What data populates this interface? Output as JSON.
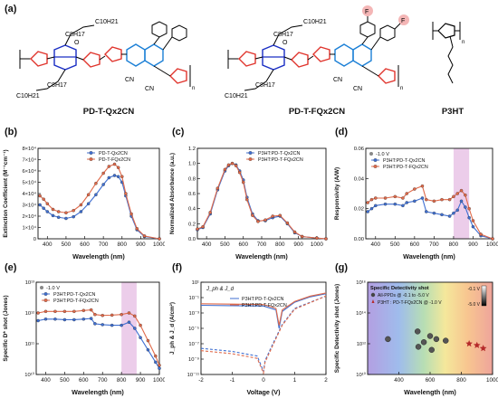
{
  "panels": {
    "a": "(a)",
    "b": "(b)",
    "c": "(c)",
    "d": "(d)",
    "e": "(e)",
    "f": "(f)",
    "g": "(g)"
  },
  "structures": {
    "poly1_name": "PD-T-Qx2CN",
    "poly2_name": "PD-T-FQx2CN",
    "poly3_name": "P3HT",
    "sidechain_top": "C8H17",
    "sidechain_top2": "C10H21",
    "sidechain_bot": "C10H21",
    "sidechain_bot2": "C8H17",
    "cn": "CN",
    "n": "n",
    "o": "O",
    "f": "F",
    "colors": {
      "thiophene": "#e0342c",
      "dpp": "#1a2ec4",
      "quinox": "#1b7fd6",
      "fluoro_hl": "#f4b6b6"
    }
  },
  "chart_data": [
    {
      "id": "b",
      "type": "line",
      "xlabel": "Wavelength (nm)",
      "ylabel": "Extinction Coefficient (M⁻¹cm⁻¹)",
      "xlim": [
        350,
        1000
      ],
      "ylim": [
        0,
        80000
      ],
      "xticks": [
        "400",
        "500",
        "600",
        "700",
        "800",
        "900",
        "1000"
      ],
      "yticks": [
        "0",
        "1×10⁴",
        "2×10⁴",
        "3×10⁴",
        "4×10⁴",
        "5×10⁴",
        "6×10⁴",
        "7×10⁴",
        "8×10⁴"
      ],
      "legend": [
        "PD-T-Qx2CN",
        "PD-T-FQx2CN"
      ],
      "series": [
        {
          "name": "PD-T-Qx2CN",
          "color": "#3f6fd1",
          "x": [
            360,
            380,
            400,
            430,
            460,
            500,
            540,
            580,
            620,
            660,
            700,
            730,
            760,
            780,
            800,
            820,
            850,
            880,
            920,
            1000
          ],
          "y": [
            30000,
            27000,
            24000,
            20500,
            19000,
            18000,
            19500,
            24000,
            31000,
            39000,
            48000,
            54000,
            56000,
            55000,
            50000,
            38000,
            20000,
            8000,
            2000,
            0
          ]
        },
        {
          "name": "PD-T-FQx2CN",
          "color": "#e06a4a",
          "x": [
            360,
            380,
            400,
            430,
            460,
            500,
            540,
            580,
            620,
            660,
            700,
            730,
            760,
            780,
            800,
            820,
            850,
            880,
            920,
            1000
          ],
          "y": [
            38000,
            35000,
            31000,
            26000,
            24000,
            23000,
            25000,
            30000,
            39000,
            49000,
            58000,
            64000,
            66000,
            63000,
            55000,
            40000,
            22000,
            9000,
            2500,
            0
          ]
        }
      ]
    },
    {
      "id": "c",
      "type": "line",
      "xlabel": "Wavelength (nm)",
      "ylabel": "Normalized Absorbance (a.u.)",
      "xlim": [
        350,
        1050
      ],
      "ylim": [
        0,
        1.2
      ],
      "xticks": [
        "400",
        "500",
        "600",
        "700",
        "800",
        "900",
        "1000"
      ],
      "yticks": [
        "0.0",
        "0.2",
        "0.4",
        "0.6",
        "0.8",
        "1.0",
        "1.2"
      ],
      "legend": [
        "P3HT:PD-T-Qx2CN",
        "P3HT:PD-T-FQx2CN"
      ],
      "series": [
        {
          "name": "P3HT:PD-T-Qx2CN",
          "color": "#3f6fd1",
          "x": [
            350,
            380,
            420,
            460,
            500,
            520,
            540,
            560,
            580,
            600,
            620,
            650,
            680,
            720,
            760,
            800,
            840,
            880,
            920,
            1000,
            1050
          ],
          "y": [
            0.12,
            0.15,
            0.33,
            0.65,
            0.9,
            0.97,
            1.0,
            0.98,
            0.9,
            0.78,
            0.55,
            0.33,
            0.24,
            0.24,
            0.28,
            0.3,
            0.2,
            0.08,
            0.03,
            0.01,
            0.0
          ]
        },
        {
          "name": "P3HT:PD-T-FQx2CN",
          "color": "#e06a4a",
          "x": [
            350,
            380,
            420,
            460,
            500,
            520,
            540,
            560,
            580,
            600,
            620,
            650,
            680,
            720,
            760,
            800,
            840,
            880,
            920,
            1000,
            1050
          ],
          "y": [
            0.13,
            0.16,
            0.35,
            0.67,
            0.92,
            0.98,
            1.0,
            0.97,
            0.88,
            0.75,
            0.52,
            0.31,
            0.23,
            0.25,
            0.3,
            0.31,
            0.21,
            0.09,
            0.03,
            0.01,
            0.0
          ]
        }
      ]
    },
    {
      "id": "d",
      "type": "line",
      "xlabel": "Wavelength (nm)",
      "ylabel": "Responsivity (A/W)",
      "xlim": [
        350,
        1000
      ],
      "ylim": [
        0,
        0.06
      ],
      "xticks": [
        "400",
        "500",
        "600",
        "700",
        "800",
        "900",
        "1000"
      ],
      "yticks": [
        "0.00",
        "0.02",
        "0.04",
        "0.06"
      ],
      "annotation": "-1.0 V",
      "highlight": [
        800,
        880
      ],
      "legend": [
        "P3HT:PD-T-Qx2CN",
        "P3HT:PD-T-FQx2CN"
      ],
      "series": [
        {
          "name": "P3HT:PD-T-Qx2CN",
          "color": "#3f6fd1",
          "x": [
            360,
            380,
            400,
            450,
            500,
            540,
            560,
            600,
            640,
            660,
            700,
            740,
            780,
            800,
            820,
            840,
            860,
            880,
            900,
            940,
            1000
          ],
          "y": [
            0.018,
            0.02,
            0.022,
            0.023,
            0.023,
            0.022,
            0.024,
            0.025,
            0.027,
            0.018,
            0.017,
            0.016,
            0.015,
            0.017,
            0.019,
            0.025,
            0.021,
            0.014,
            0.008,
            0.002,
            0.0
          ]
        },
        {
          "name": "P3HT:PD-T-FQx2CN",
          "color": "#e06a4a",
          "x": [
            360,
            380,
            400,
            450,
            500,
            540,
            560,
            600,
            640,
            660,
            700,
            740,
            780,
            800,
            820,
            840,
            860,
            880,
            900,
            940,
            1000
          ],
          "y": [
            0.024,
            0.026,
            0.027,
            0.027,
            0.028,
            0.027,
            0.03,
            0.033,
            0.035,
            0.026,
            0.025,
            0.026,
            0.026,
            0.028,
            0.03,
            0.032,
            0.029,
            0.02,
            0.012,
            0.003,
            0.0
          ]
        }
      ]
    },
    {
      "id": "e",
      "type": "line",
      "xlabel": "Wavelength (nm)",
      "ylabel": "Specific D* shot (Jones)",
      "xlim": [
        350,
        1000
      ],
      "ylim_log": [
        10,
        13
      ],
      "xticks": [
        "400",
        "500",
        "600",
        "700",
        "800",
        "900",
        "1000"
      ],
      "yticks": [
        "10¹⁰",
        "10¹¹",
        "10¹²",
        "10¹³"
      ],
      "annotation": "-1.0 V",
      "highlight": [
        800,
        880
      ],
      "legend": [
        "P3HT:PD-T-Qx2CN",
        "P3HT:PD-T-FQx2CN"
      ],
      "series": [
        {
          "name": "P3HT:PD-T-Qx2CN",
          "color": "#3f6fd1",
          "x": [
            360,
            400,
            450,
            500,
            550,
            600,
            640,
            660,
            700,
            750,
            800,
            840,
            870,
            900,
            940,
            980,
            1000
          ],
          "y": [
            11.75,
            11.8,
            11.8,
            11.78,
            11.78,
            11.8,
            11.82,
            11.65,
            11.62,
            11.6,
            11.6,
            11.7,
            11.5,
            11.2,
            10.8,
            10.4,
            10.2
          ]
        },
        {
          "name": "P3HT:PD-T-FQx2CN",
          "color": "#e06a4a",
          "x": [
            360,
            400,
            450,
            500,
            550,
            600,
            640,
            660,
            700,
            750,
            800,
            840,
            870,
            900,
            940,
            980,
            1000
          ],
          "y": [
            12.0,
            12.05,
            12.05,
            12.05,
            12.05,
            12.08,
            12.1,
            11.95,
            11.92,
            11.93,
            11.95,
            12.0,
            11.9,
            11.6,
            11.1,
            10.6,
            10.3
          ]
        }
      ]
    },
    {
      "id": "f",
      "type": "line",
      "xlabel": "Voltage (V)",
      "ylabel": "J_ph & J_d (A/cm²)",
      "xlim": [
        -2,
        2
      ],
      "ylim_log": [
        -11,
        1
      ],
      "xticks": [
        "-2",
        "-1",
        "0",
        "1",
        "2"
      ],
      "yticks": [
        "10⁻¹¹",
        "10⁻⁹",
        "10⁻⁷",
        "10⁻⁵",
        "10⁻³",
        "10⁻¹",
        "10¹"
      ],
      "annotation": "J_ph & J_d",
      "legend": [
        "P3HT:PD-T-Qx2CN",
        "P3HT:PD-T-FQx2CN"
      ],
      "series": [
        {
          "name": "P3HT:PD-T-Qx2CN",
          "color": "#3f6fd1",
          "kind": "J_ph",
          "x": [
            -2,
            -1,
            0,
            0.4,
            0.5,
            0.6,
            1,
            1.5,
            2
          ],
          "y": [
            -2.0,
            -2.05,
            -2.1,
            -2.6,
            -5,
            -2.8,
            -1.6,
            -0.9,
            -0.5
          ]
        },
        {
          "name": "P3HT:PD-T-FQx2CN",
          "color": "#e06a4a",
          "kind": "J_ph",
          "x": [
            -2,
            -1,
            0,
            0.4,
            0.5,
            0.6,
            1,
            1.5,
            2
          ],
          "y": [
            -1.8,
            -1.85,
            -1.9,
            -2.4,
            -4.6,
            -2.6,
            -1.5,
            -0.8,
            -0.4
          ]
        },
        {
          "name": "P3HT:PD-T-Qx2CN",
          "color": "#3f6fd1",
          "kind": "J_d",
          "x": [
            -2,
            -1,
            -0.2,
            0,
            0.05,
            0.3,
            0.6,
            1,
            2
          ],
          "y": [
            -7.6,
            -8.0,
            -8.6,
            -10.6,
            -9.2,
            -7,
            -4.5,
            -2.4,
            -0.8
          ]
        },
        {
          "name": "P3HT:PD-T-FQx2CN",
          "color": "#e06a4a",
          "kind": "J_d",
          "x": [
            -2,
            -1,
            -0.2,
            0,
            0.05,
            0.3,
            0.6,
            1,
            2
          ],
          "y": [
            -7.9,
            -8.3,
            -8.9,
            -10.8,
            -9.4,
            -7.2,
            -4.6,
            -2.5,
            -0.8
          ]
        }
      ]
    },
    {
      "id": "g",
      "type": "scatter",
      "title": "Specific Detectivity shot",
      "xlabel": "Wavelength (nm)",
      "ylabel": "Specific Detectivity shot (Jones)",
      "xlim": [
        200,
        1000
      ],
      "ylim_log": [
        10,
        16
      ],
      "xticks": [
        "400",
        "600",
        "800",
        "1000"
      ],
      "yticks": [
        "10¹⁰",
        "10¹²",
        "10¹⁴",
        "10¹⁶"
      ],
      "legend": [
        "All-PPDs @ -0.1 to -5.0 V",
        "P3HT : PD-T-FQx2CN @ -1.0 V"
      ],
      "colorbar": [
        "-0.1 V",
        "-5.0 V"
      ],
      "series": [
        {
          "name": "All-PPDs @ -0.1 to -5.0 V",
          "marker": "circle",
          "x": [
            330,
            520,
            525,
            560,
            600,
            610,
            640,
            700
          ],
          "y": [
            12.3,
            12.8,
            11.8,
            12.1,
            12.5,
            11.6,
            12.3,
            12.2
          ]
        },
        {
          "name": "P3HT : PD-T-FQx2CN @ -1.0 V",
          "marker": "star",
          "color": "#b52a2a",
          "x": [
            850,
            900,
            940
          ],
          "y": [
            12.0,
            11.9,
            11.7
          ]
        }
      ]
    }
  ]
}
